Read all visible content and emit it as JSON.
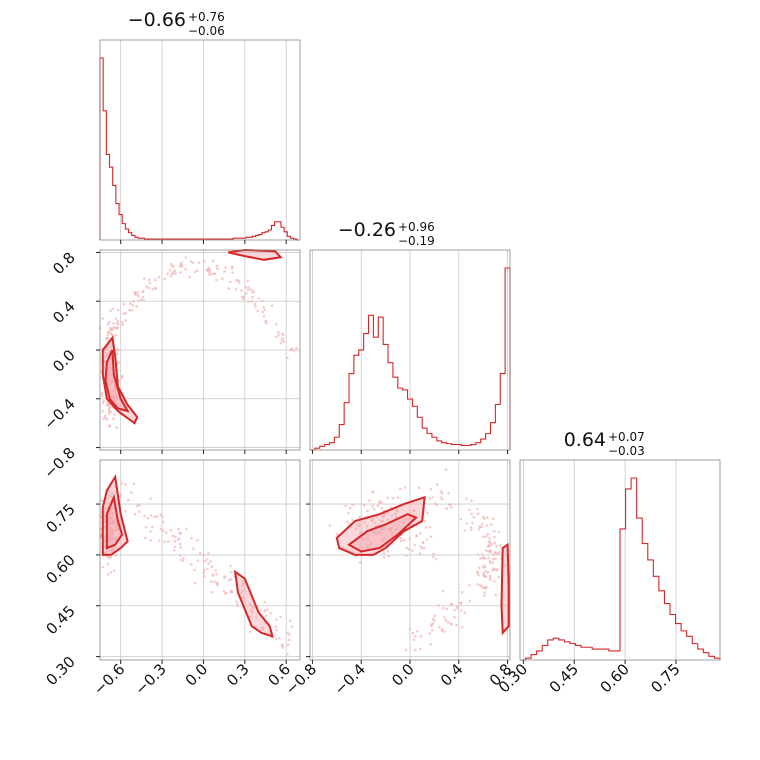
{
  "colors": {
    "accent": "#d62728",
    "scatter": "#f3b3b3",
    "contour_fill": "#f5a6ad",
    "grid": "#c8c8c8"
  },
  "chart_data": {
    "type": "corner",
    "grid": true,
    "parameters": [
      {
        "range": [
          -0.75,
          0.7
        ],
        "ticks": [
          -0.6,
          -0.3,
          0.0,
          0.3,
          0.6
        ],
        "tick_labels": [
          "−0.6",
          "−0.3",
          "0.0",
          "0.3",
          "0.6"
        ],
        "title": {
          "main": "−0.66",
          "plus": "+0.76",
          "minus": "−0.06"
        }
      },
      {
        "range": [
          -0.82,
          0.82
        ],
        "ticks": [
          -0.8,
          -0.4,
          0.0,
          0.4,
          0.8
        ],
        "tick_labels": [
          "−0.8",
          "−0.4",
          "0.0",
          "0.4",
          "0.8"
        ],
        "title": {
          "main": "−0.26",
          "plus": "+0.96",
          "minus": "−0.19"
        }
      },
      {
        "range": [
          0.29,
          0.88
        ],
        "ticks": [
          0.3,
          0.45,
          0.6,
          0.75
        ],
        "tick_labels": [
          "0.30",
          "0.45",
          "0.60",
          "0.75"
        ],
        "title": {
          "main": "0.64",
          "plus": "+0.07",
          "minus": "−0.03"
        }
      }
    ],
    "histograms": [
      {
        "param": 0,
        "counts": [
          1.0,
          0.71,
          0.47,
          0.4,
          0.3,
          0.2,
          0.14,
          0.09,
          0.06,
          0.04,
          0.025,
          0.015,
          0.01,
          0.01,
          0.005,
          0.005,
          0.005,
          0.005,
          0.005,
          0.005,
          0.005,
          0.005,
          0.005,
          0.005,
          0.005,
          0.005,
          0.005,
          0.005,
          0.005,
          0.005,
          0.005,
          0.005,
          0.005,
          0.005,
          0.005,
          0.005,
          0.005,
          0.005,
          0.005,
          0.005,
          0.005,
          0.005,
          0.01,
          0.01,
          0.01,
          0.01,
          0.015,
          0.015,
          0.02,
          0.025,
          0.03,
          0.04,
          0.045,
          0.055,
          0.08,
          0.1,
          0.1,
          0.07,
          0.045,
          0.02,
          0.01,
          0.005,
          0.0
        ]
      },
      {
        "param": 1,
        "counts": [
          0.0,
          0.01,
          0.02,
          0.03,
          0.04,
          0.07,
          0.14,
          0.26,
          0.42,
          0.52,
          0.55,
          0.64,
          0.74,
          0.62,
          0.73,
          0.58,
          0.48,
          0.4,
          0.34,
          0.33,
          0.28,
          0.24,
          0.18,
          0.12,
          0.09,
          0.07,
          0.05,
          0.04,
          0.035,
          0.03,
          0.03,
          0.025,
          0.025,
          0.03,
          0.04,
          0.06,
          0.09,
          0.15,
          0.25,
          0.42,
          1.0
        ]
      },
      {
        "param": 2,
        "counts": [
          0.0,
          0.01,
          0.03,
          0.05,
          0.08,
          0.11,
          0.12,
          0.11,
          0.1,
          0.09,
          0.08,
          0.07,
          0.07,
          0.06,
          0.06,
          0.06,
          0.05,
          0.05,
          0.72,
          0.94,
          1.0,
          0.78,
          0.64,
          0.55,
          0.46,
          0.38,
          0.31,
          0.25,
          0.2,
          0.16,
          0.13,
          0.09,
          0.06,
          0.04,
          0.02,
          0.01
        ]
      }
    ],
    "contours": [
      {
        "x_param": 0,
        "y_param": 1,
        "levels": [
          [
            [
              -0.73,
              0.0
            ],
            [
              -0.66,
              0.1
            ],
            [
              -0.64,
              -0.05
            ],
            [
              -0.62,
              -0.3
            ],
            [
              -0.55,
              -0.45
            ],
            [
              -0.48,
              -0.55
            ],
            [
              -0.5,
              -0.6
            ],
            [
              -0.62,
              -0.5
            ],
            [
              -0.7,
              -0.4
            ],
            [
              -0.73,
              -0.2
            ]
          ],
          [
            [
              -0.7,
              -0.1
            ],
            [
              -0.66,
              0.0
            ],
            [
              -0.65,
              -0.2
            ],
            [
              -0.6,
              -0.4
            ],
            [
              -0.55,
              -0.5
            ],
            [
              -0.62,
              -0.48
            ],
            [
              -0.68,
              -0.4
            ],
            [
              -0.71,
              -0.25
            ]
          ],
          [
            [
              0.18,
              0.8
            ],
            [
              0.3,
              0.82
            ],
            [
              0.52,
              0.81
            ],
            [
              0.56,
              0.76
            ],
            [
              0.44,
              0.74
            ],
            [
              0.3,
              0.77
            ]
          ]
        ]
      },
      {
        "x_param": 0,
        "y_param": 2,
        "levels": [
          [
            [
              -0.73,
              0.6
            ],
            [
              -0.73,
              0.74
            ],
            [
              -0.7,
              0.79
            ],
            [
              -0.64,
              0.83
            ],
            [
              -0.6,
              0.72
            ],
            [
              -0.55,
              0.64
            ],
            [
              -0.6,
              0.62
            ],
            [
              -0.67,
              0.6
            ]
          ],
          [
            [
              -0.7,
              0.62
            ],
            [
              -0.7,
              0.72
            ],
            [
              -0.65,
              0.77
            ],
            [
              -0.62,
              0.7
            ],
            [
              -0.59,
              0.66
            ],
            [
              -0.64,
              0.63
            ]
          ],
          [
            [
              0.23,
              0.55
            ],
            [
              0.25,
              0.49
            ],
            [
              0.3,
              0.44
            ],
            [
              0.35,
              0.39
            ],
            [
              0.42,
              0.37
            ],
            [
              0.5,
              0.36
            ],
            [
              0.48,
              0.39
            ],
            [
              0.4,
              0.43
            ],
            [
              0.35,
              0.48
            ],
            [
              0.3,
              0.53
            ]
          ]
        ]
      },
      {
        "x_param": 1,
        "y_param": 2,
        "levels": [
          [
            [
              -0.6,
              0.65
            ],
            [
              -0.45,
              0.7
            ],
            [
              -0.25,
              0.72
            ],
            [
              -0.05,
              0.75
            ],
            [
              0.12,
              0.77
            ],
            [
              0.1,
              0.7
            ],
            [
              -0.05,
              0.67
            ],
            [
              -0.2,
              0.62
            ],
            [
              -0.3,
              0.6
            ],
            [
              -0.45,
              0.6
            ],
            [
              -0.58,
              0.62
            ]
          ],
          [
            [
              -0.5,
              0.63
            ],
            [
              -0.35,
              0.67
            ],
            [
              -0.2,
              0.69
            ],
            [
              -0.02,
              0.72
            ],
            [
              0.05,
              0.71
            ],
            [
              -0.1,
              0.66
            ],
            [
              -0.25,
              0.62
            ],
            [
              -0.4,
              0.61
            ]
          ],
          [
            [
              0.76,
              0.62
            ],
            [
              0.8,
              0.63
            ],
            [
              0.81,
              0.5
            ],
            [
              0.81,
              0.39
            ],
            [
              0.76,
              0.37
            ],
            [
              0.75,
              0.45
            ]
          ]
        ]
      }
    ]
  }
}
